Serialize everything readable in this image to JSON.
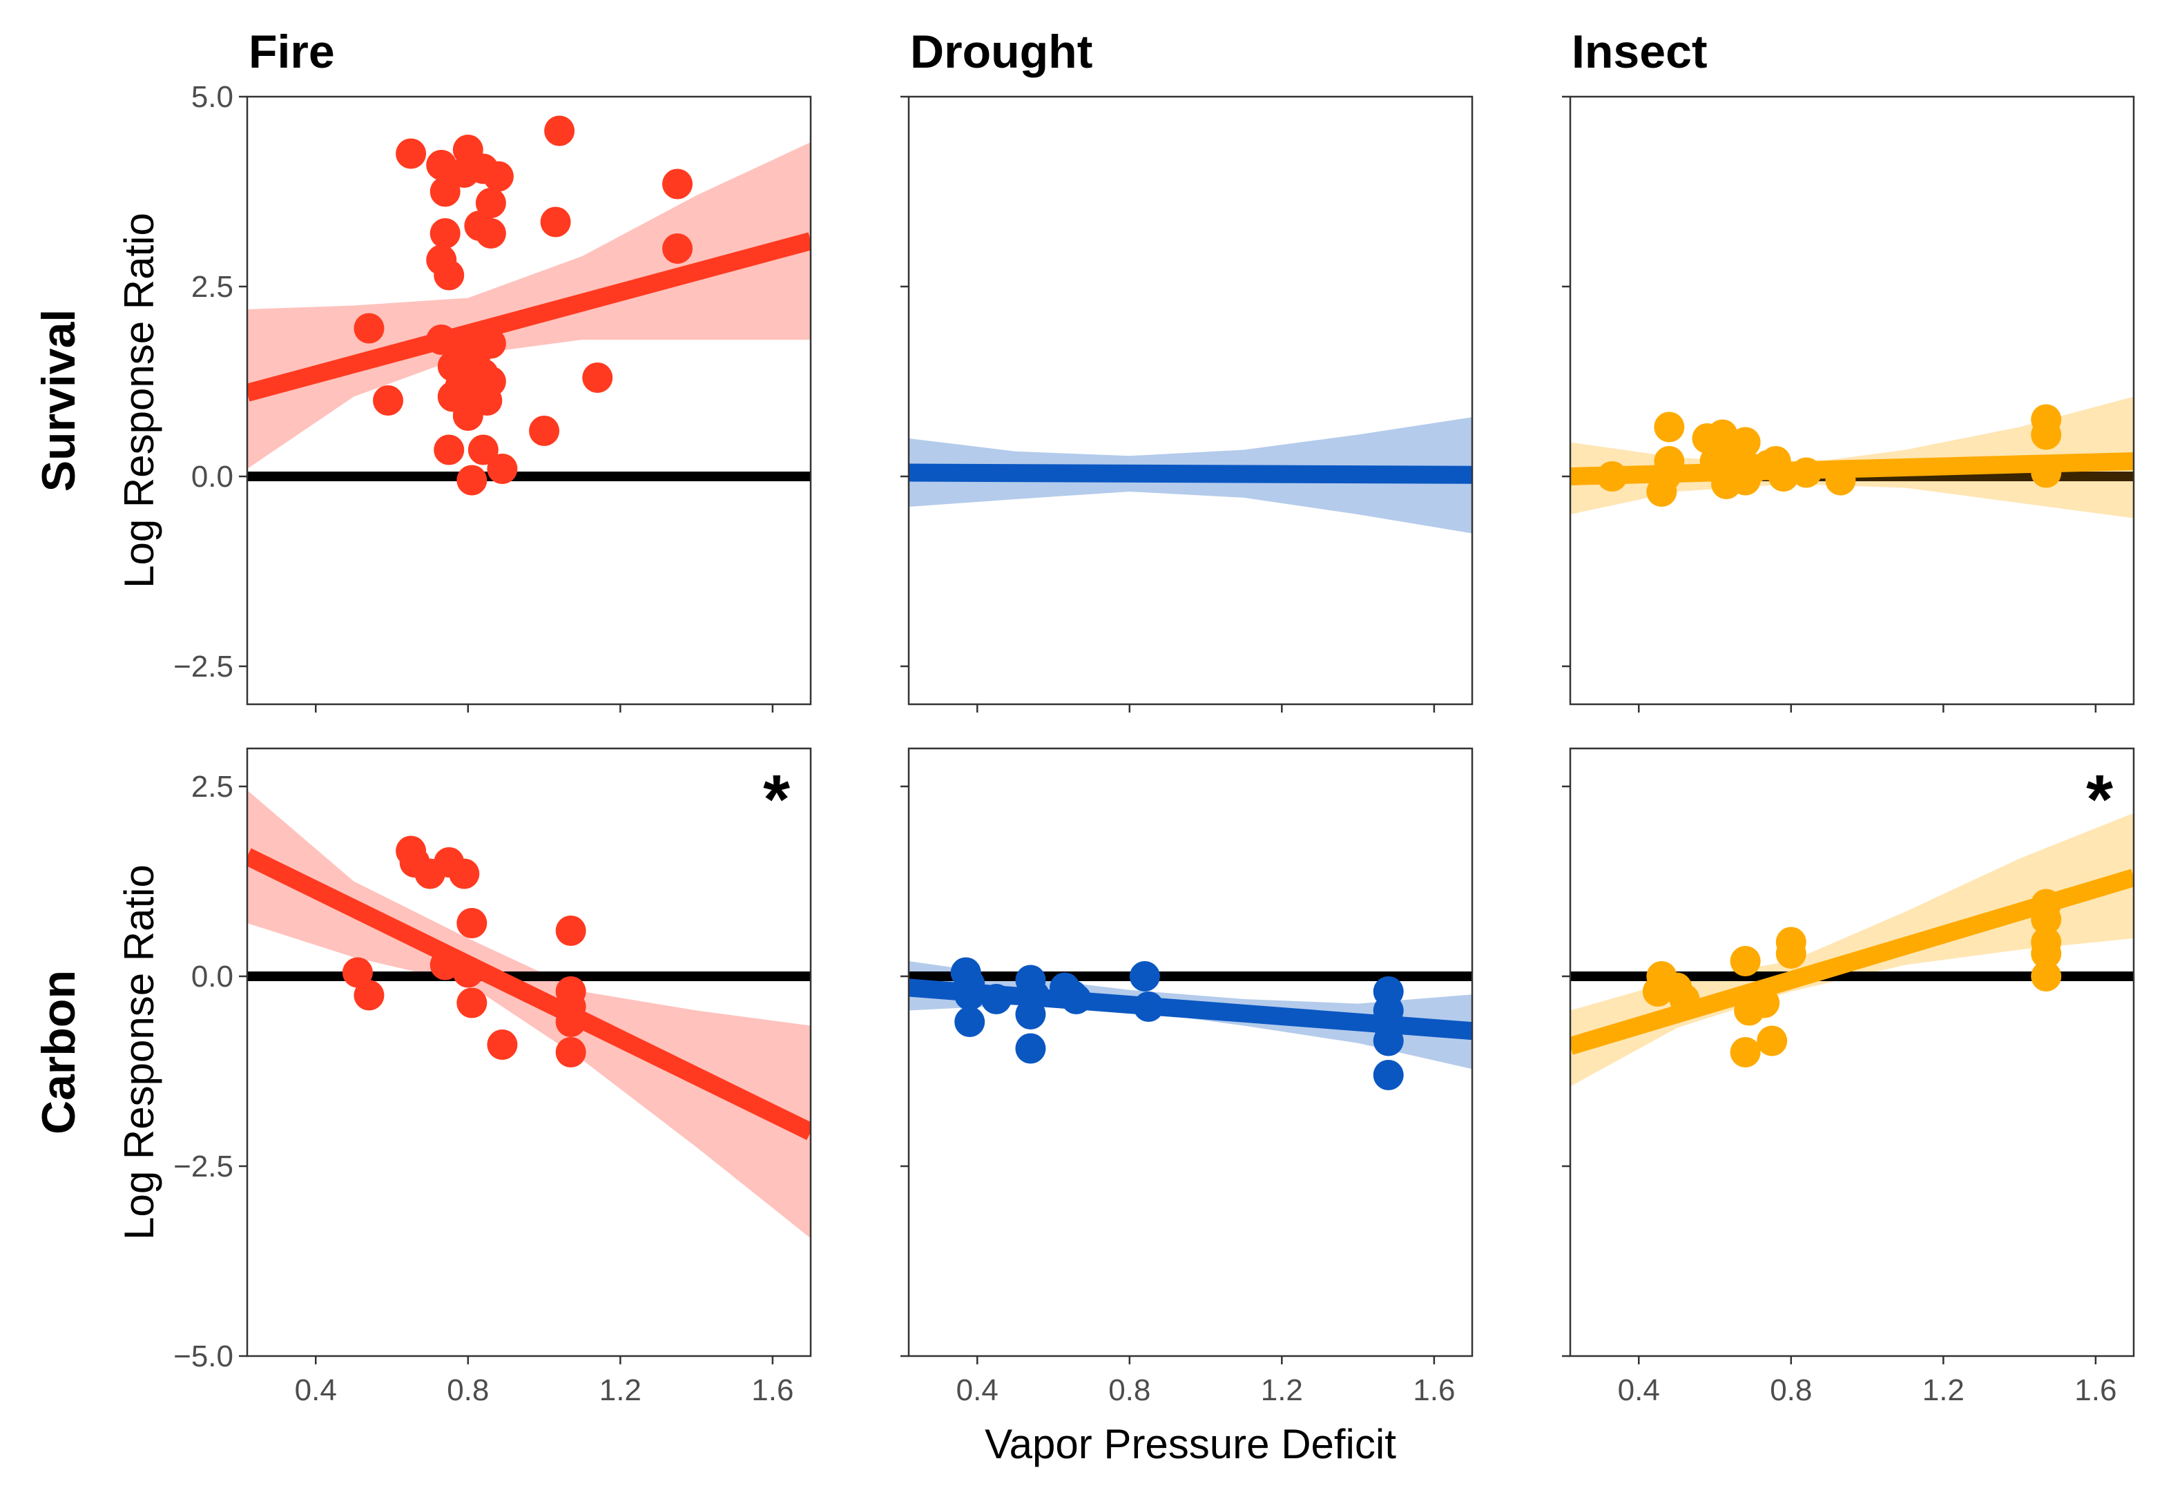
{
  "chart_data": {
    "type": "scatter",
    "xlabel": "Vapor Pressure Deficit",
    "ylabel": "Log Response Ratio",
    "columns": [
      "Fire",
      "Drought",
      "Insect"
    ],
    "rows": [
      "Survival",
      "Carbon"
    ],
    "colors": {
      "Fire": "#ff3a20",
      "Drought": "#0a57c2",
      "Insect": "#ffaa00",
      "reference": "#000000"
    },
    "band_colors": {
      "Fire": "#ffc2bd",
      "Drought": "#b4cbeb",
      "Insect": "#ffe6b3"
    },
    "xlim": [
      0.22,
      1.7
    ],
    "xticks": [
      0.4,
      0.8,
      1.2,
      1.6
    ],
    "xtick_labels": [
      "0.4",
      "0.8",
      "1.2",
      "1.6"
    ],
    "grid": false,
    "legend": "none",
    "panels": [
      {
        "row": "Survival",
        "column": "Fire",
        "ylim": [
          -3,
          5
        ],
        "yticks": [
          -2.5,
          0,
          2.5,
          5
        ],
        "ytick_labels": [
          "−2.5",
          "0.0",
          "2.5",
          "5.0"
        ],
        "significant": false,
        "points": [
          [
            0.65,
            4.25
          ],
          [
            0.73,
            4.1
          ],
          [
            0.79,
            4.0
          ],
          [
            0.8,
            4.3
          ],
          [
            0.84,
            4.05
          ],
          [
            0.88,
            3.95
          ],
          [
            0.74,
            3.75
          ],
          [
            0.86,
            3.6
          ],
          [
            0.74,
            3.2
          ],
          [
            0.83,
            3.3
          ],
          [
            0.86,
            3.2
          ],
          [
            0.73,
            2.85
          ],
          [
            0.75,
            2.65
          ],
          [
            1.04,
            4.55
          ],
          [
            1.03,
            3.35
          ],
          [
            1.35,
            3.85
          ],
          [
            1.35,
            3.0
          ],
          [
            0.54,
            1.95
          ],
          [
            0.73,
            1.8
          ],
          [
            0.78,
            1.7
          ],
          [
            0.82,
            1.6
          ],
          [
            0.86,
            1.75
          ],
          [
            0.76,
            1.45
          ],
          [
            0.8,
            1.45
          ],
          [
            0.84,
            1.35
          ],
          [
            0.78,
            1.2
          ],
          [
            0.86,
            1.25
          ],
          [
            0.76,
            1.05
          ],
          [
            0.81,
            1.0
          ],
          [
            0.85,
            1.0
          ],
          [
            0.8,
            0.8
          ],
          [
            0.59,
            1.0
          ],
          [
            1.14,
            1.3
          ],
          [
            1.0,
            0.6
          ],
          [
            0.75,
            0.35
          ],
          [
            0.84,
            0.35
          ],
          [
            0.89,
            0.1
          ],
          [
            0.81,
            -0.05
          ]
        ],
        "fit": {
          "x": [
            0.22,
            1.7
          ],
          "y": [
            1.1,
            3.1
          ]
        },
        "band": {
          "x": [
            0.22,
            0.5,
            0.8,
            1.1,
            1.4,
            1.7
          ],
          "lower": [
            0.1,
            1.05,
            1.6,
            1.8,
            1.8,
            1.8
          ],
          "upper": [
            2.2,
            2.25,
            2.35,
            2.9,
            3.7,
            4.4
          ]
        }
      },
      {
        "row": "Survival",
        "column": "Drought",
        "ylim": [
          -3,
          5
        ],
        "yticks": [
          -2.5,
          0,
          2.5,
          5
        ],
        "ytick_labels": [
          "−2.5",
          "0.0",
          "2.5",
          "5.0"
        ],
        "significant": false,
        "points": [],
        "fit": {
          "x": [
            0.22,
            1.7
          ],
          "y": [
            0.05,
            0.02
          ]
        },
        "band": {
          "x": [
            0.22,
            0.5,
            0.8,
            1.1,
            1.4,
            1.7
          ],
          "lower": [
            -0.4,
            -0.3,
            -0.2,
            -0.28,
            -0.5,
            -0.75
          ],
          "upper": [
            0.5,
            0.33,
            0.27,
            0.35,
            0.55,
            0.78
          ]
        }
      },
      {
        "row": "Survival",
        "column": "Insect",
        "ylim": [
          -3,
          5
        ],
        "yticks": [
          -2.5,
          0,
          2.5,
          5
        ],
        "ytick_labels": [
          "−2.5",
          "0.0",
          "2.5",
          "5.0"
        ],
        "significant": false,
        "points": [
          [
            0.33,
            0.0
          ],
          [
            0.46,
            -0.2
          ],
          [
            0.47,
            0.0
          ],
          [
            0.48,
            0.2
          ],
          [
            0.48,
            0.65
          ],
          [
            0.58,
            0.5
          ],
          [
            0.62,
            0.55
          ],
          [
            0.64,
            0.35
          ],
          [
            0.68,
            0.45
          ],
          [
            0.6,
            0.2
          ],
          [
            0.63,
            0.1
          ],
          [
            0.65,
            0.0
          ],
          [
            0.63,
            -0.1
          ],
          [
            0.68,
            -0.05
          ],
          [
            0.7,
            0.1
          ],
          [
            0.74,
            0.15
          ],
          [
            0.76,
            0.2
          ],
          [
            0.78,
            0.0
          ],
          [
            0.84,
            0.05
          ],
          [
            0.93,
            -0.05
          ],
          [
            1.47,
            0.75
          ],
          [
            1.47,
            0.55
          ],
          [
            1.47,
            0.05
          ]
        ],
        "fit": {
          "x": [
            0.22,
            1.7
          ],
          "y": [
            0.0,
            0.2
          ]
        },
        "band": {
          "x": [
            0.22,
            0.5,
            0.8,
            1.1,
            1.4,
            1.7
          ],
          "lower": [
            -0.5,
            -0.2,
            -0.1,
            -0.15,
            -0.35,
            -0.55
          ],
          "upper": [
            0.45,
            0.25,
            0.15,
            0.35,
            0.65,
            1.05
          ]
        },
        "secondary_fit": {
          "x": [
            0.22,
            1.7
          ],
          "y": [
            0.0,
            0.0
          ]
        }
      },
      {
        "row": "Carbon",
        "column": "Fire",
        "ylim": [
          -5,
          3
        ],
        "yticks": [
          -5,
          -2.5,
          0,
          2.5
        ],
        "ytick_labels": [
          "−5.0",
          "−2.5",
          "0.0",
          "2.5"
        ],
        "significant": true,
        "marker": "*",
        "points": [
          [
            0.65,
            1.65
          ],
          [
            0.66,
            1.5
          ],
          [
            0.7,
            1.35
          ],
          [
            0.75,
            1.5
          ],
          [
            0.79,
            1.35
          ],
          [
            0.81,
            0.7
          ],
          [
            0.51,
            0.05
          ],
          [
            0.54,
            -0.25
          ],
          [
            0.74,
            0.15
          ],
          [
            0.8,
            0.05
          ],
          [
            0.81,
            -0.35
          ],
          [
            0.89,
            -0.9
          ],
          [
            1.07,
            0.6
          ],
          [
            1.07,
            -0.2
          ],
          [
            1.07,
            -0.4
          ],
          [
            1.07,
            -0.6
          ],
          [
            1.07,
            -1.0
          ]
        ],
        "fit": {
          "x": [
            0.22,
            1.7
          ],
          "y": [
            1.58,
            -2.05
          ]
        },
        "band": {
          "x": [
            0.22,
            0.5,
            0.8,
            1.1,
            1.4,
            1.7
          ],
          "lower": [
            0.7,
            0.25,
            -0.1,
            -1.1,
            -2.25,
            -3.45
          ],
          "upper": [
            2.45,
            1.25,
            0.5,
            -0.2,
            -0.45,
            -0.65
          ]
        }
      },
      {
        "row": "Carbon",
        "column": "Drought",
        "ylim": [
          -5,
          3
        ],
        "yticks": [
          -5,
          -2.5,
          0,
          2.5
        ],
        "ytick_labels": [
          "−5.0",
          "−2.5",
          "0.0",
          "2.5"
        ],
        "significant": false,
        "points": [
          [
            0.37,
            0.05
          ],
          [
            0.38,
            -0.1
          ],
          [
            0.38,
            -0.25
          ],
          [
            0.38,
            -0.6
          ],
          [
            0.45,
            -0.3
          ],
          [
            0.54,
            -0.05
          ],
          [
            0.55,
            -0.25
          ],
          [
            0.54,
            -0.5
          ],
          [
            0.54,
            -0.95
          ],
          [
            0.63,
            -0.15
          ],
          [
            0.65,
            -0.25
          ],
          [
            0.66,
            -0.3
          ],
          [
            0.84,
            0.0
          ],
          [
            0.85,
            -0.4
          ],
          [
            1.48,
            -0.2
          ],
          [
            1.48,
            -0.45
          ],
          [
            1.48,
            -0.65
          ],
          [
            1.48,
            -0.85
          ],
          [
            1.48,
            -1.3
          ]
        ],
        "fit": {
          "x": [
            0.22,
            1.7
          ],
          "y": [
            -0.15,
            -0.72
          ]
        },
        "band": {
          "x": [
            0.22,
            0.5,
            0.8,
            1.1,
            1.4,
            1.7
          ],
          "lower": [
            -0.45,
            -0.38,
            -0.45,
            -0.65,
            -0.88,
            -1.22
          ],
          "upper": [
            0.2,
            0.0,
            -0.18,
            -0.3,
            -0.36,
            -0.24
          ]
        }
      },
      {
        "row": "Carbon",
        "column": "Insect",
        "ylim": [
          -5,
          3
        ],
        "yticks": [
          -5,
          -2.5,
          0,
          2.5
        ],
        "ytick_labels": [
          "−5.0",
          "−2.5",
          "0.0",
          "2.5"
        ],
        "significant": true,
        "marker": "*",
        "points": [
          [
            0.46,
            0.0
          ],
          [
            0.45,
            -0.2
          ],
          [
            0.5,
            -0.15
          ],
          [
            0.52,
            -0.3
          ],
          [
            0.68,
            0.2
          ],
          [
            0.69,
            -0.45
          ],
          [
            0.68,
            -1.0
          ],
          [
            0.73,
            -0.35
          ],
          [
            0.75,
            -0.85
          ],
          [
            0.8,
            0.45
          ],
          [
            0.8,
            0.3
          ],
          [
            1.47,
            0.95
          ],
          [
            1.47,
            0.75
          ],
          [
            1.47,
            0.45
          ],
          [
            1.47,
            0.3
          ],
          [
            1.47,
            0.0
          ]
        ],
        "fit": {
          "x": [
            0.22,
            1.7
          ],
          "y": [
            -0.92,
            1.3
          ]
        },
        "band": {
          "x": [
            0.22,
            0.5,
            0.8,
            1.1,
            1.4,
            1.7
          ],
          "lower": [
            -1.45,
            -0.68,
            -0.2,
            0.15,
            0.35,
            0.5
          ],
          "upper": [
            -0.45,
            -0.05,
            0.2,
            0.85,
            1.55,
            2.15
          ]
        }
      }
    ]
  }
}
